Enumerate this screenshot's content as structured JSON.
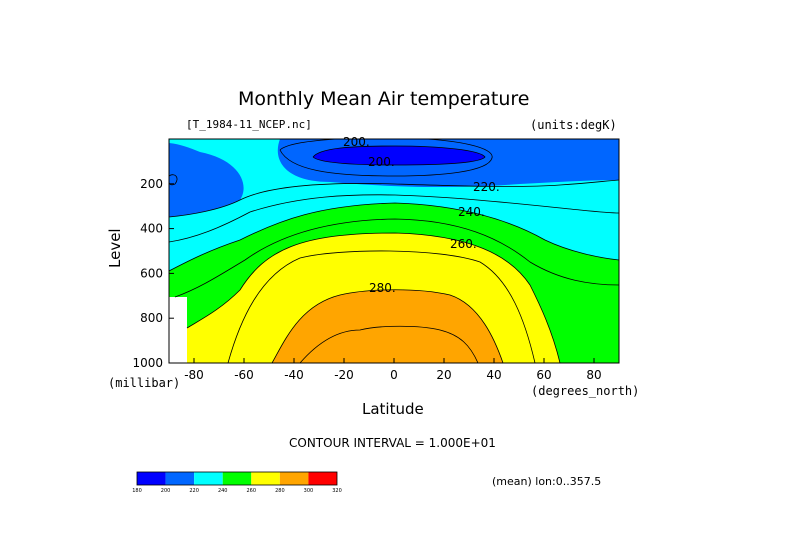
{
  "chart_data": {
    "type": "heatmap",
    "title": "Monthly Mean Air temperature",
    "file_label": "[T_1984-11_NCEP.nc]",
    "units_label": "(units:degK)",
    "xlabel": "Latitude",
    "x_units": "(degrees_north)",
    "ylabel": "Level",
    "y_units": "(millibar)",
    "xlim": [
      -90,
      90
    ],
    "ylim": [
      1000,
      0
    ],
    "x_ticks": [
      -80,
      -60,
      -40,
      -20,
      0,
      20,
      40,
      60,
      80
    ],
    "y_ticks": [
      200,
      400,
      600,
      800,
      1000
    ],
    "contour_interval_text": "CONTOUR INTERVAL = 1.000E+01",
    "contour_labels": [
      "200.",
      "200.",
      "220.",
      "240.",
      "260.",
      "280."
    ],
    "mean_note": "(mean) lon:0..357.5",
    "colorbar": {
      "levels": [
        180,
        200,
        220,
        240,
        260,
        280,
        300,
        320
      ],
      "level_labels": [
        "180",
        "200",
        "220",
        "240",
        "260",
        "280",
        "300",
        "320"
      ],
      "colors": [
        "#0000ff",
        "#0066ff",
        "#00ffff",
        "#00ff00",
        "#ffff00",
        "#ffa500",
        "#ff0000"
      ]
    },
    "fill_colors": {
      "band_200_220": "#0066ff",
      "band_210_220": "#0066ff",
      "band_220_240": "#00ffff",
      "band_240_260": "#00ff00",
      "band_260_280": "#ffff00",
      "band_280_300": "#ffa500",
      "core_180_200": "#0000ff"
    }
  }
}
